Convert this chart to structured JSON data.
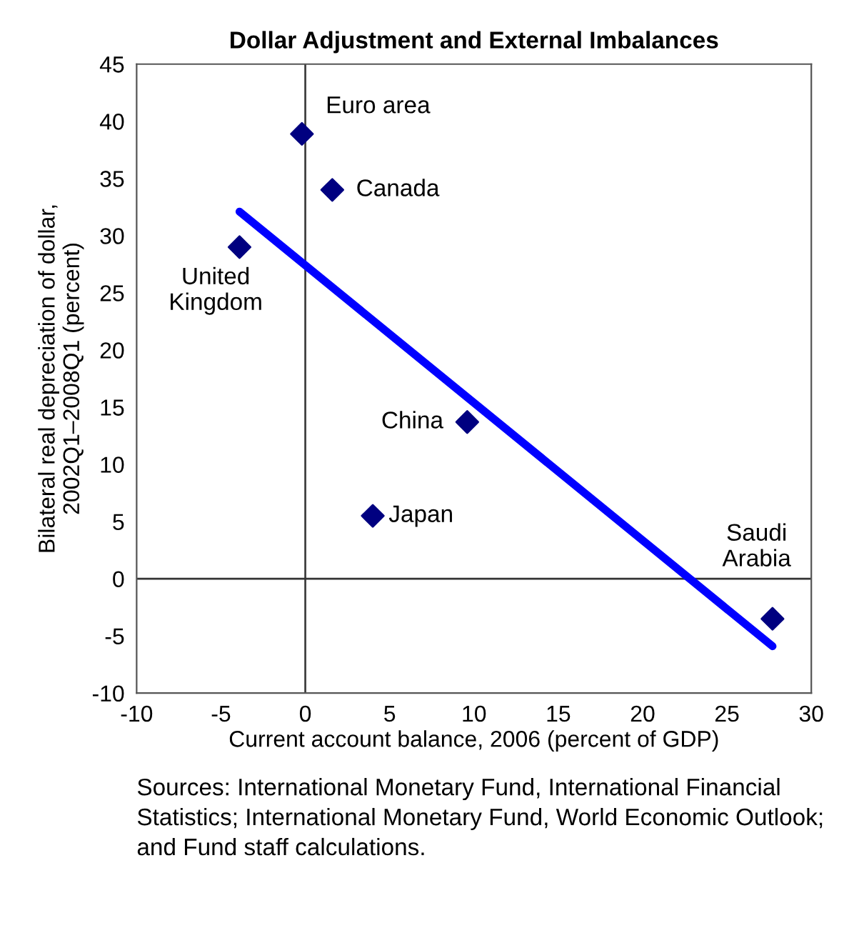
{
  "chart_data": {
    "type": "scatter",
    "title": "Dollar Adjustment and External Imbalances",
    "xlabel": "Current account balance, 2006 (percent of GDP)",
    "ylabel": "Bilateral real depreciation of dollar,\n2002Q1–2008Q1 (percent)",
    "series": [
      {
        "color": "#000080",
        "marker": "diamond",
        "x": [
          -0.2,
          1.6,
          -3.9,
          9.6,
          4.0,
          27.7
        ],
        "values": [
          38.9,
          34.0,
          29.0,
          13.7,
          5.5,
          -3.5
        ]
      },
      {
        "type": "line",
        "color": "#0000ff",
        "marker": "none",
        "line_style": "solid",
        "x": [
          -3.9,
          27.7
        ],
        "values": [
          32.1,
          -5.9
        ]
      }
    ],
    "annotations": [
      {
        "text": "Euro area",
        "x": -0.2,
        "y": 38.9
      },
      {
        "text": "Canada",
        "x": 1.6,
        "y": 34.0
      },
      {
        "text": "United\nKingdom",
        "x": -3.9,
        "y": 29.0
      },
      {
        "text": "China",
        "x": 9.6,
        "y": 13.7
      },
      {
        "text": "Japan",
        "x": 4.0,
        "y": 5.5
      },
      {
        "text": "Saudi\nArabia",
        "x": 27.7,
        "y": -3.5
      },
      "Sources: International Monetary Fund, International Financial Statistics; International Monetary Fund, World Economic Outlook; and Fund staff calculations."
    ],
    "ref_lines": [
      {
        "axis": "x",
        "value": 0,
        "color": "#404040"
      },
      {
        "axis": "y",
        "value": 0,
        "color": "#333333"
      }
    ],
    "xlim": [
      -10,
      30
    ],
    "xticks": [
      -10,
      -5,
      0,
      5,
      10,
      15,
      20,
      25,
      30
    ],
    "ylim": [
      -10,
      45
    ],
    "yticks": [
      -10,
      -5,
      0,
      5,
      10,
      15,
      20,
      25,
      30,
      35,
      40,
      45
    ],
    "grid": false,
    "legend": false
  }
}
